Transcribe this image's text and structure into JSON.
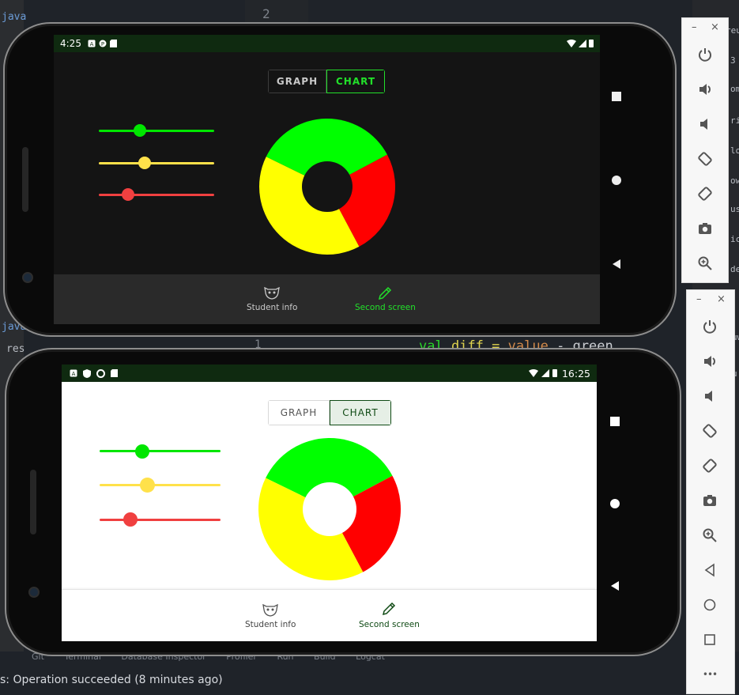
{
  "ide": {
    "tree_items": [
      "java",
      "res"
    ],
    "line_number": "2",
    "line_number_2": "1",
    "code_snippet": {
      "kw": "val",
      "name": "diff",
      "op": "=",
      "value": "value",
      "tail": "- green"
    },
    "side_fragments": [
      "reu",
      "3",
      "om",
      "rin",
      "low",
      "ow",
      "us",
      "ict",
      "de",
      "uw",
      "u"
    ],
    "tool_tabs": [
      "Git",
      "Terminal",
      "Database Inspector",
      "Profiler",
      "Run",
      "Build",
      "Logcat"
    ],
    "status_message": "s: Operation succeeded (8 minutes ago)"
  },
  "emulator_panel_top": {
    "minimize": "–",
    "close": "×",
    "buttons": [
      "power-icon",
      "volume-up-icon",
      "volume-down-icon",
      "rotate-left-icon",
      "rotate-right-icon",
      "screenshot-icon",
      "zoom-icon"
    ]
  },
  "emulator_panel_bottom": {
    "minimize": "–",
    "close": "×",
    "buttons": [
      "power-icon",
      "volume-up-icon",
      "volume-down-icon",
      "rotate-left-icon",
      "rotate-right-icon",
      "screenshot-icon",
      "zoom-icon",
      "back-icon",
      "home-icon",
      "overview-icon",
      "more-icon"
    ],
    "more_label": "•••"
  },
  "phone_dark": {
    "time": "4:25",
    "theme": "dark",
    "tabs": {
      "graph": "GRAPH",
      "chart": "CHART",
      "selected": "chart"
    },
    "sliders": [
      {
        "color": "#00e600",
        "value": 0.35
      },
      {
        "color": "#ffe14a",
        "value": 0.4
      },
      {
        "color": "#f04040",
        "value": 0.25
      }
    ],
    "nav": {
      "student_info": "Student info",
      "second_screen": "Second screen",
      "selected": "second_screen"
    },
    "colors": {
      "accent": "#22e02a",
      "background": "#141414",
      "bar": "#0f2a10"
    }
  },
  "phone_light": {
    "time": "16:25",
    "theme": "light",
    "tabs": {
      "graph": "GRAPH",
      "chart": "CHART",
      "selected": "chart"
    },
    "sliders": [
      {
        "color": "#00e600",
        "value": 0.35
      },
      {
        "color": "#ffe14a",
        "value": 0.4
      },
      {
        "color": "#f04040",
        "value": 0.25
      }
    ],
    "nav": {
      "student_info": "Student info",
      "second_screen": "Second screen",
      "selected": "second_screen"
    },
    "colors": {
      "accent": "#0f4a14",
      "background": "#ffffff",
      "bar": "#0f2a10"
    }
  },
  "chart_data": {
    "type": "pie",
    "style": "donut",
    "categories": [
      "green",
      "red",
      "yellow"
    ],
    "values": [
      35,
      25,
      40
    ],
    "colors": [
      "#00ff00",
      "#ff0000",
      "#ffff00"
    ]
  }
}
